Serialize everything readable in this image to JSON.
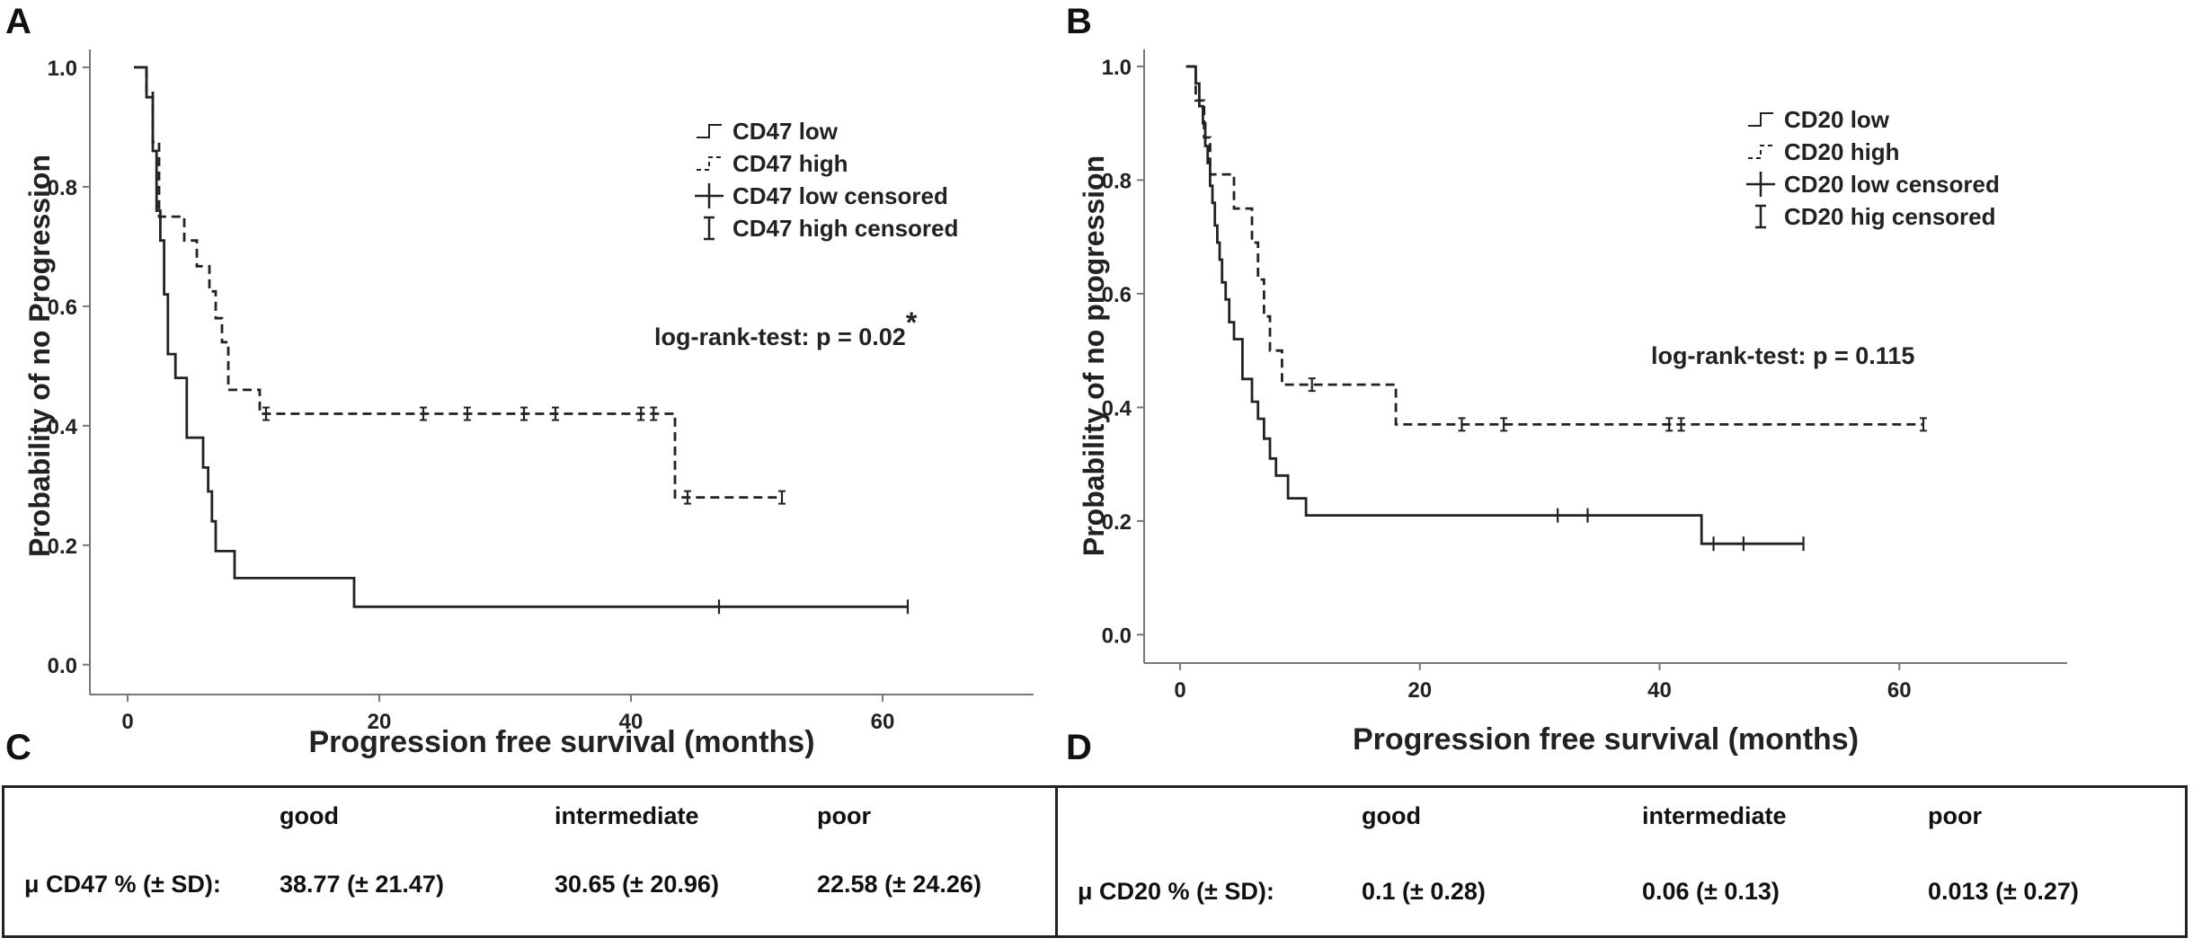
{
  "panels": [
    {
      "letter": "A",
      "chart_data": {
        "type": "line",
        "subtype": "kaplan-meier step",
        "xlabel": "Progression free survival (months)",
        "ylabel": "Probability of no Progression",
        "xlim": [
          -3,
          72
        ],
        "ylim": [
          -0.05,
          1.03
        ],
        "xticks": [
          0,
          20,
          40,
          60
        ],
        "xtick_labels": [
          "0",
          "20",
          "40",
          "60"
        ],
        "yticks": [
          0.0,
          0.2,
          0.4,
          0.6,
          0.8,
          1.0
        ],
        "ytick_labels": [
          "0.0",
          "0.2",
          "0.4",
          "0.6",
          "0.8",
          "1.0"
        ],
        "grid": false,
        "legend_position": "top-right",
        "legend": [
          "CD47 low",
          "CD47 high",
          "CD47 low censored",
          "CD47 high censored"
        ],
        "annotation": "log-rank-test: p = 0.02",
        "annotation_superscript": "*",
        "series": [
          {
            "name": "CD47 low",
            "style": "solid",
            "steps": [
              [
                0.5,
                1.0
              ],
              [
                1.5,
                0.95
              ],
              [
                2.0,
                0.86
              ],
              [
                2.3,
                0.76
              ],
              [
                2.6,
                0.71
              ],
              [
                2.9,
                0.62
              ],
              [
                3.2,
                0.52
              ],
              [
                3.8,
                0.48
              ],
              [
                4.7,
                0.38
              ],
              [
                6.0,
                0.33
              ],
              [
                6.4,
                0.29
              ],
              [
                6.7,
                0.24
              ],
              [
                7.0,
                0.19
              ],
              [
                8.5,
                0.145
              ],
              [
                18.0,
                0.097
              ],
              [
                62.0,
                0.097
              ]
            ],
            "censored": [
              47.0,
              62.0
            ]
          },
          {
            "name": "CD47 high",
            "style": "dashed",
            "steps": [
              [
                0.5,
                1.0
              ],
              [
                1.5,
                0.96
              ],
              [
                2.0,
                0.875
              ],
              [
                2.5,
                0.75
              ],
              [
                4.5,
                0.71
              ],
              [
                5.5,
                0.667
              ],
              [
                6.5,
                0.625
              ],
              [
                7.0,
                0.58
              ],
              [
                7.5,
                0.54
              ],
              [
                8.0,
                0.46
              ],
              [
                10.5,
                0.42
              ],
              [
                43.5,
                0.28
              ],
              [
                52.0,
                0.28
              ]
            ],
            "censored": [
              11.0,
              23.5,
              27.0,
              31.5,
              34.0,
              40.8,
              41.8,
              44.5,
              52.0
            ]
          }
        ]
      }
    },
    {
      "letter": "B",
      "chart_data": {
        "type": "line",
        "subtype": "kaplan-meier step",
        "xlabel": "Progression free survival (months)",
        "ylabel": "Probability of no progression",
        "xlim": [
          -3,
          74
        ],
        "ylim": [
          -0.05,
          1.03
        ],
        "xticks": [
          0,
          20,
          40,
          60
        ],
        "xtick_labels": [
          "0",
          "20",
          "40",
          "60"
        ],
        "yticks": [
          0.0,
          0.2,
          0.4,
          0.6,
          0.8,
          1.0
        ],
        "ytick_labels": [
          "0.0",
          "0.2",
          "0.4",
          "0.6",
          "0.8",
          "1.0"
        ],
        "grid": false,
        "legend_position": "top-right",
        "legend": [
          "CD20 low",
          "CD20 high",
          "CD20 low censored",
          "CD20 hig censored"
        ],
        "annotation": "log-rank-test: p = 0.115",
        "annotation_superscript": "",
        "series": [
          {
            "name": "CD20 low",
            "style": "solid",
            "steps": [
              [
                0.5,
                1.0
              ],
              [
                1.3,
                0.97
              ],
              [
                1.6,
                0.93
              ],
              [
                1.9,
                0.9
              ],
              [
                2.1,
                0.86
              ],
              [
                2.3,
                0.83
              ],
              [
                2.5,
                0.79
              ],
              [
                2.7,
                0.76
              ],
              [
                2.9,
                0.72
              ],
              [
                3.1,
                0.69
              ],
              [
                3.3,
                0.66
              ],
              [
                3.5,
                0.62
              ],
              [
                3.8,
                0.59
              ],
              [
                4.1,
                0.55
              ],
              [
                4.5,
                0.52
              ],
              [
                5.2,
                0.45
              ],
              [
                6.0,
                0.41
              ],
              [
                6.5,
                0.38
              ],
              [
                7.0,
                0.345
              ],
              [
                7.5,
                0.31
              ],
              [
                8.0,
                0.28
              ],
              [
                9.0,
                0.24
              ],
              [
                10.5,
                0.21
              ],
              [
                43.5,
                0.16
              ],
              [
                52.0,
                0.16
              ]
            ],
            "censored": [
              31.5,
              34.0,
              44.5,
              47.0,
              52.0
            ]
          },
          {
            "name": "CD20 high",
            "style": "dashed",
            "steps": [
              [
                0.5,
                1.0
              ],
              [
                1.3,
                0.94
              ],
              [
                2.0,
                0.875
              ],
              [
                2.5,
                0.81
              ],
              [
                4.5,
                0.75
              ],
              [
                6.0,
                0.69
              ],
              [
                6.5,
                0.625
              ],
              [
                7.0,
                0.56
              ],
              [
                7.5,
                0.5
              ],
              [
                8.5,
                0.44
              ],
              [
                18.0,
                0.37
              ],
              [
                62.0,
                0.37
              ]
            ],
            "censored": [
              11.0,
              23.5,
              27.0,
              40.8,
              41.8,
              62.0
            ]
          }
        ]
      }
    }
  ],
  "tables": [
    {
      "letter": "C",
      "headers": [
        "good",
        "intermediate",
        "poor"
      ],
      "row_label": "μ CD47 % (± SD):",
      "values": [
        "38.77 (± 21.47)",
        "30.65 (± 20.96)",
        "22.58 (± 24.26)"
      ]
    },
    {
      "letter": "D",
      "headers": [
        "good",
        "intermediate",
        "poor"
      ],
      "row_label": "μ CD20 % (± SD):",
      "values": [
        "0.1 (± 0.28)",
        "0.06 (± 0.13)",
        "0.013 (± 0.27)"
      ]
    }
  ]
}
